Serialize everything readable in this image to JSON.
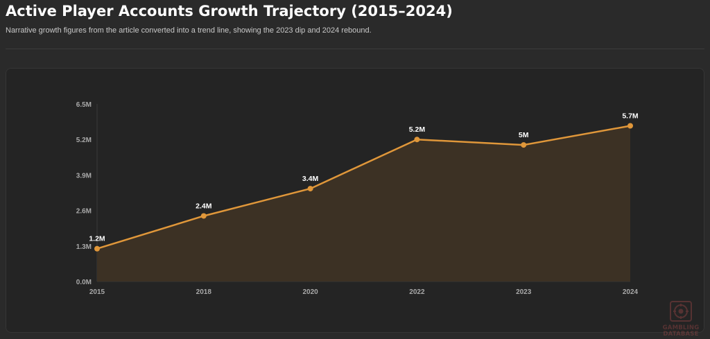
{
  "header": {
    "title": "Active Player Accounts Growth Trajectory (2015–2024)",
    "subtitle": "Narrative growth figures from the article converted into a trend line, showing the 2023 dip and 2024 rebound."
  },
  "watermark": {
    "line1": "GAMBLING",
    "line2": "DATABASE",
    "icon": "gambling-database-logo-icon",
    "color": "#c05050"
  },
  "colors": {
    "line": "#e0973a",
    "area": "#3c3124",
    "grid_axis": "#3a3a3a",
    "tick_text": "#a9a9a9",
    "label_text": "#ffffff"
  },
  "chart_data": {
    "type": "line",
    "title": "Active Player Accounts Growth Trajectory (2015–2024)",
    "xlabel": "",
    "ylabel": "",
    "categories": [
      "2015",
      "2018",
      "2020",
      "2022",
      "2023",
      "2024"
    ],
    "series": [
      {
        "values": [
          1.2,
          2.4,
          3.4,
          5.2,
          5.0,
          5.7
        ],
        "data_labels": [
          "1.2M",
          "2.4M",
          "3.4M",
          "5.2M",
          "5M",
          "5.7M"
        ]
      }
    ],
    "yticks": [
      0,
      1.3,
      2.6,
      3.9,
      5.2,
      6.5
    ],
    "ytick_labels": [
      "0.0M",
      "1.3M",
      "2.6M",
      "3.9M",
      "5.2M",
      "6.5M"
    ],
    "ylim": [
      0,
      6.5
    ],
    "area_fill": true,
    "grid": false,
    "legend": "none"
  }
}
